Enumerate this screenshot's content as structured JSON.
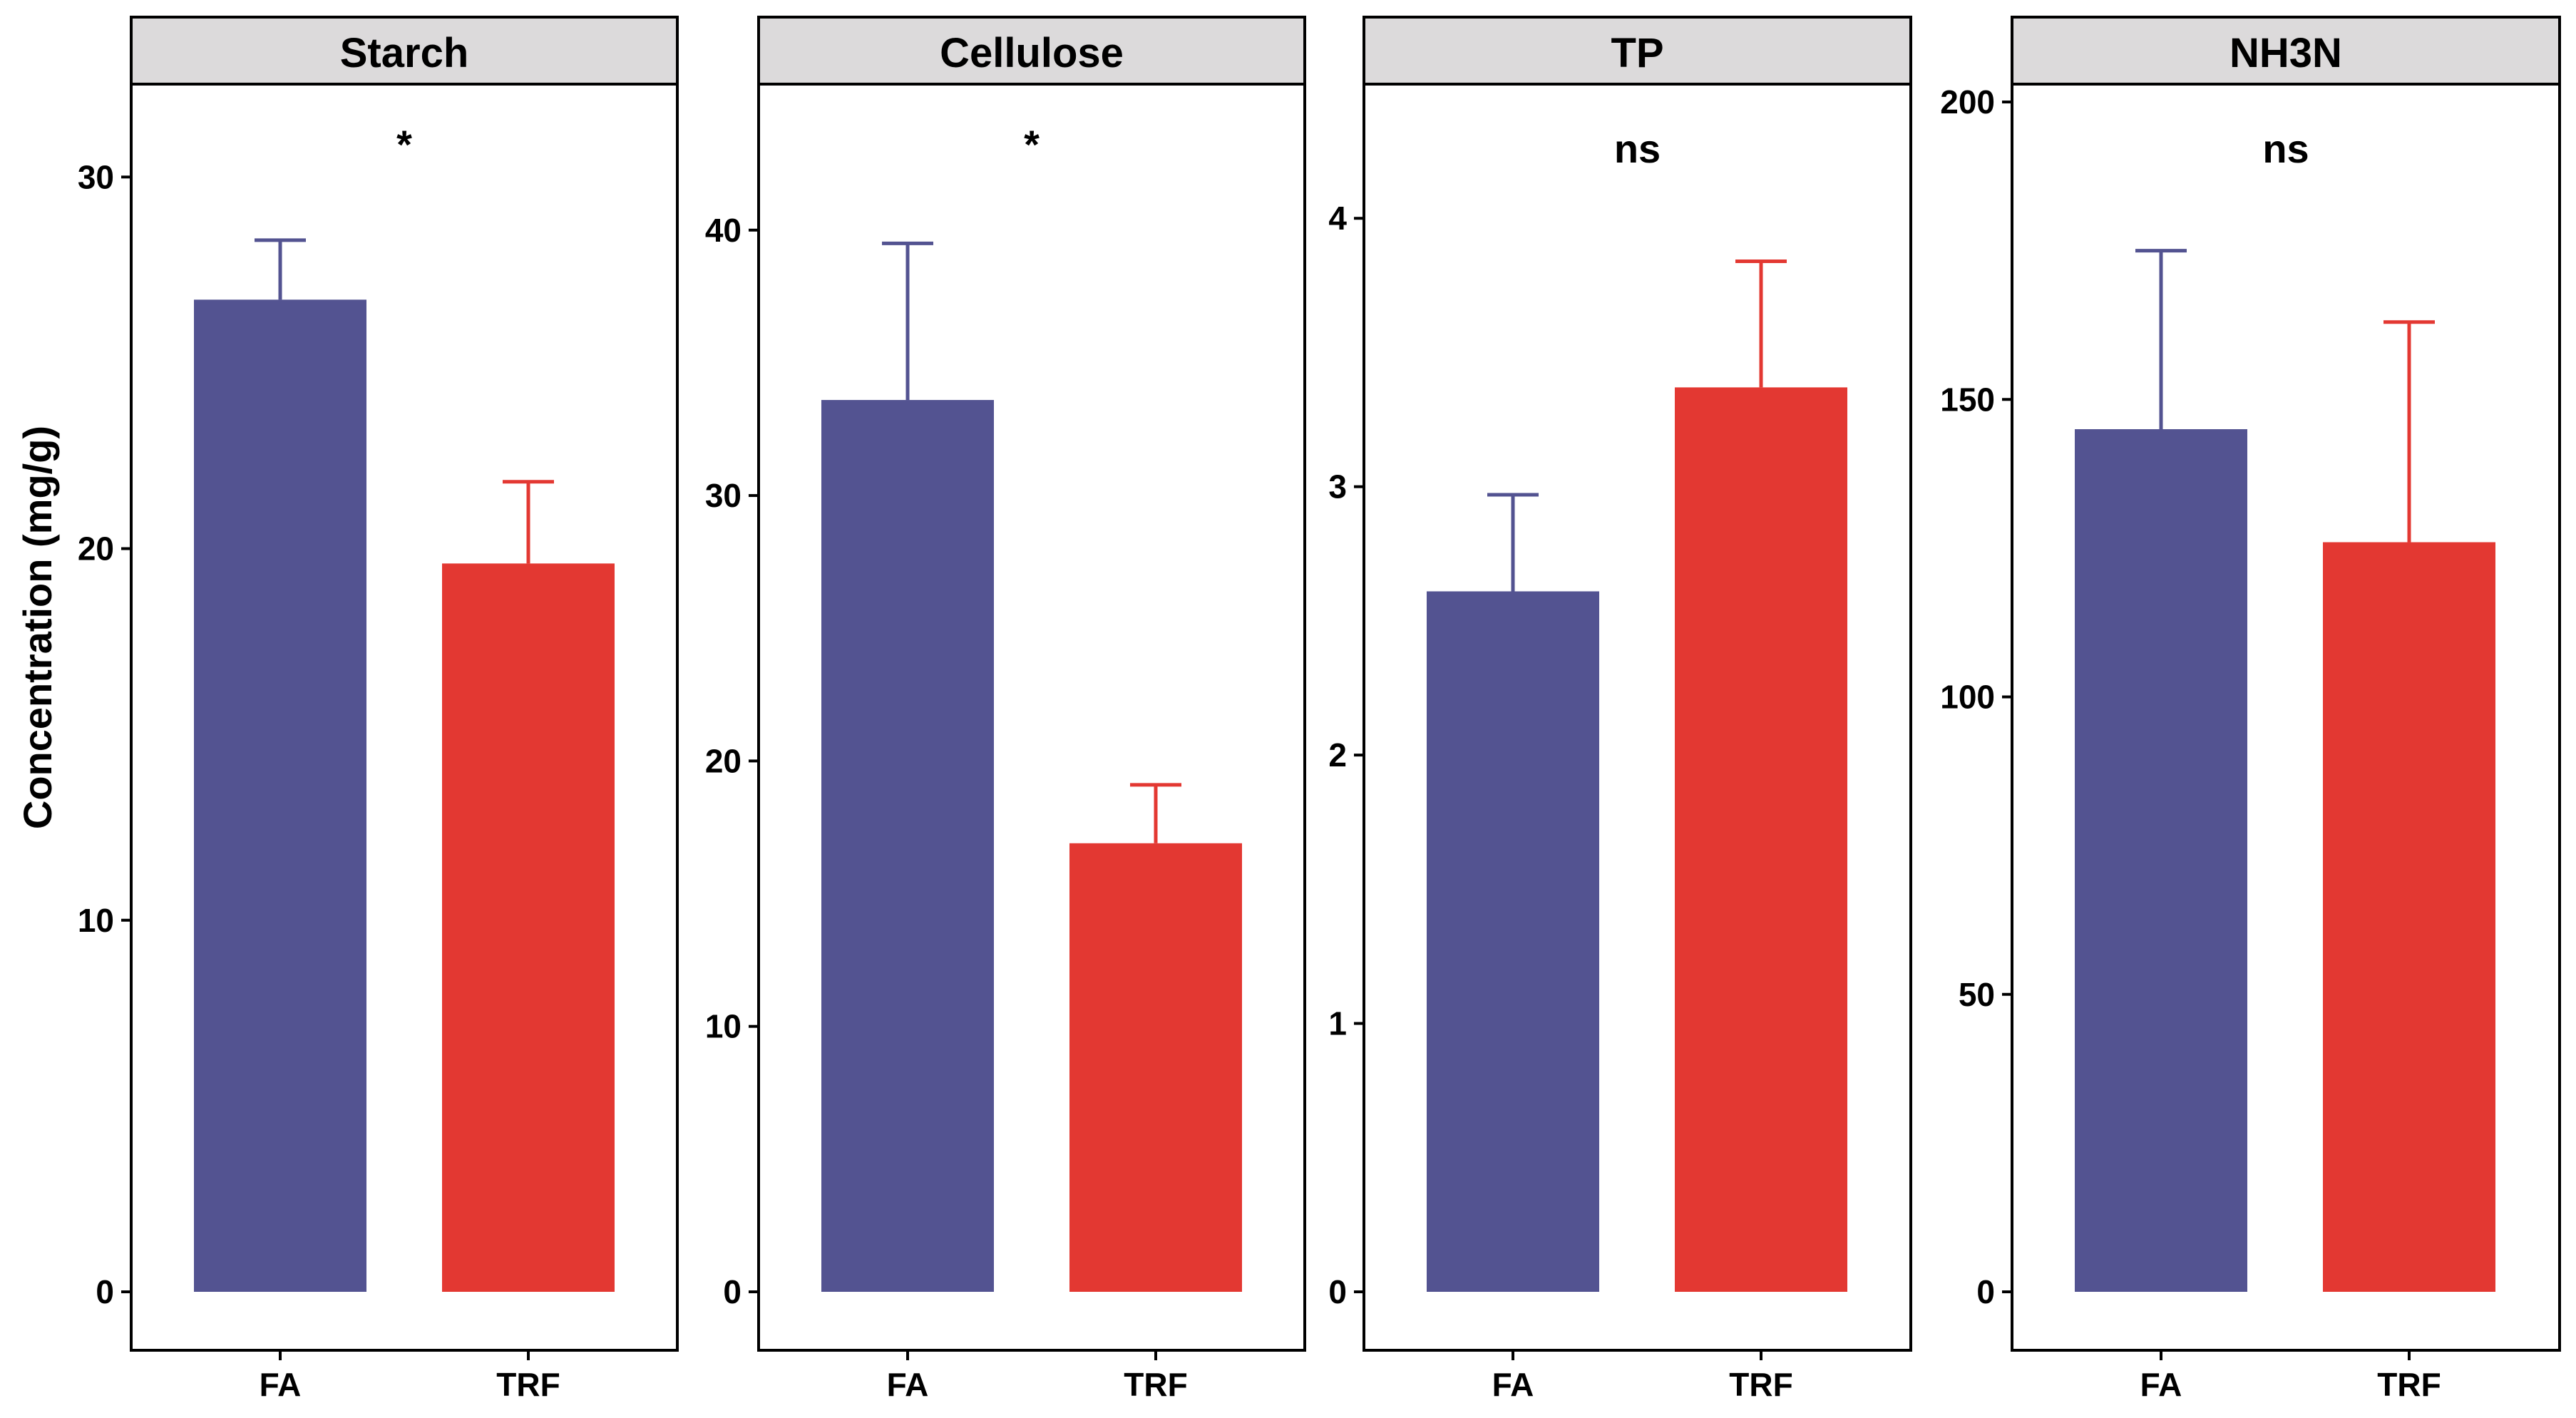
{
  "chart_data": {
    "type": "bar",
    "ylabel": "Concentration (mg/g)",
    "groups": [
      "FA",
      "TRF"
    ],
    "group_colors": {
      "FA": "#535391",
      "TRF": "#E33832"
    },
    "panel_strip_color": "#DCDADB",
    "panels": [
      {
        "title": "Starch",
        "significance": "*",
        "ylim": [
          0,
          32.5
        ],
        "ticks": [
          0,
          10,
          20,
          30
        ],
        "tick_labels": [
          "0",
          "10",
          "20",
          "30"
        ],
        "values": [
          26.7,
          19.6
        ],
        "error_upper": [
          28.3,
          21.8
        ]
      },
      {
        "title": "Cellulose",
        "significance": "*",
        "ylim": [
          0,
          45.5
        ],
        "ticks": [
          0,
          10,
          20,
          30,
          40
        ],
        "tick_labels": [
          "0",
          "10",
          "20",
          "30",
          "40"
        ],
        "values": [
          33.6,
          16.9
        ],
        "error_upper": [
          39.5,
          19.1
        ]
      },
      {
        "title": "TP",
        "significance": "ns",
        "ylim": [
          0,
          4.5
        ],
        "ticks": [
          0,
          1,
          2,
          3,
          4
        ],
        "tick_labels": [
          "0",
          "1",
          "2",
          "3",
          "4"
        ],
        "values": [
          2.61,
          3.37
        ],
        "error_upper": [
          2.97,
          3.84
        ]
      },
      {
        "title": "NH3N",
        "significance": "ns",
        "ylim": [
          0,
          203
        ],
        "ticks": [
          0,
          50,
          100,
          150,
          200
        ],
        "tick_labels": [
          "0",
          "50",
          "100",
          "150",
          "200"
        ],
        "values": [
          145,
          126
        ],
        "error_upper": [
          175,
          163
        ]
      }
    ]
  }
}
